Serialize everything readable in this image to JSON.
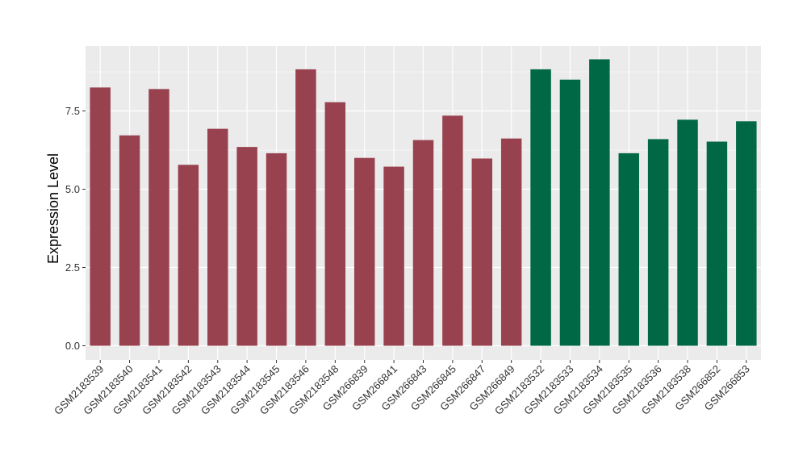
{
  "chart_data": {
    "type": "bar",
    "title": "",
    "xlabel": "",
    "ylabel": "Expression Level",
    "ylim": [
      0,
      9.55
    ],
    "yticks": [
      0.0,
      2.5,
      5.0,
      7.5
    ],
    "ytick_labels": [
      "0.0",
      "2.5",
      "5.0",
      "7.5"
    ],
    "grid": true,
    "legend": "none",
    "categories": [
      "GSM2183539",
      "GSM2183540",
      "GSM2183541",
      "GSM2183542",
      "GSM2183543",
      "GSM2183544",
      "GSM2183545",
      "GSM2183546",
      "GSM2183548",
      "GSM266839",
      "GSM266841",
      "GSM266843",
      "GSM266845",
      "GSM266847",
      "GSM266849",
      "GSM2183532",
      "GSM2183533",
      "GSM2183534",
      "GSM2183535",
      "GSM2183536",
      "GSM2183538",
      "GSM266852",
      "GSM266853"
    ],
    "values": [
      8.25,
      6.72,
      8.2,
      5.78,
      6.93,
      6.35,
      6.15,
      8.83,
      7.78,
      6.0,
      5.72,
      6.57,
      7.35,
      5.98,
      6.62,
      8.83,
      8.5,
      9.15,
      6.15,
      6.6,
      7.22,
      6.52,
      7.17
    ],
    "colors": [
      "#99424f",
      "#99424f",
      "#99424f",
      "#99424f",
      "#99424f",
      "#99424f",
      "#99424f",
      "#99424f",
      "#99424f",
      "#99424f",
      "#99424f",
      "#99424f",
      "#99424f",
      "#99424f",
      "#99424f",
      "#006845",
      "#006845",
      "#006845",
      "#006845",
      "#006845",
      "#006845",
      "#006845",
      "#006845"
    ],
    "panel_background": "#ebebeb",
    "grid_color": "#ffffff"
  }
}
